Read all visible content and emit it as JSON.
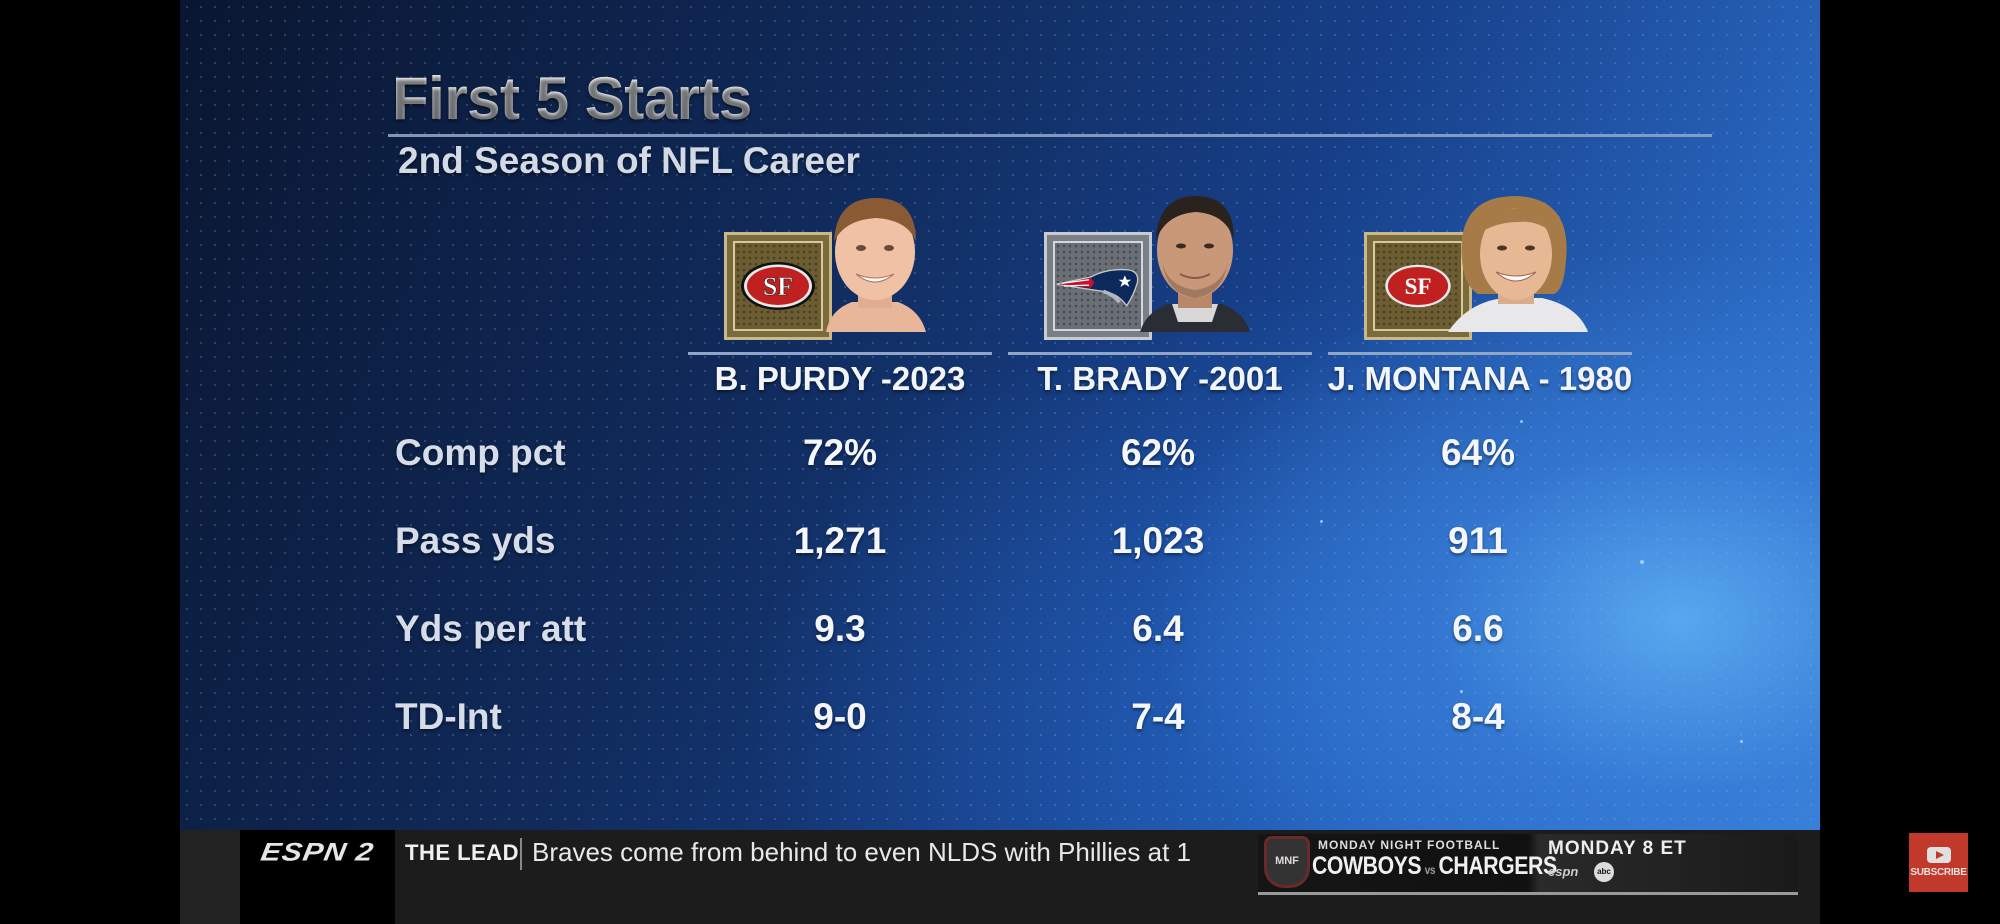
{
  "graphic": {
    "title": "First 5 Starts",
    "subtitle": "2nd Season of NFL Career"
  },
  "players": [
    {
      "name": "B. PURDY -2023",
      "team_logo": "49ers-logo",
      "team_color": "#c0201f",
      "frame": "gold"
    },
    {
      "name": "T. BRADY -2001",
      "team_logo": "patriots-logo",
      "team_color": "#0b2a5b",
      "frame": "silver"
    },
    {
      "name": "J. MONTANA - 1980",
      "team_logo": "49ers-logo",
      "team_color": "#c0201f",
      "frame": "gold"
    }
  ],
  "stats": {
    "rows": [
      {
        "label": "Comp pct",
        "values": [
          "72%",
          "62%",
          "64%"
        ]
      },
      {
        "label": "Pass yds",
        "values": [
          "1,271",
          "1,023",
          "911"
        ]
      },
      {
        "label": "Yds per att",
        "values": [
          "9.3",
          "6.4",
          "6.6"
        ]
      },
      {
        "label": "TD-Int",
        "values": [
          "9-0",
          "7-4",
          "8-4"
        ]
      }
    ]
  },
  "ticker": {
    "network": "ESPN 2",
    "segment": "THE LEAD",
    "headline": "Braves come from behind to even NLDS with Phillies at 1",
    "promo": {
      "badge": "MNF",
      "series": "MONDAY NIGHT FOOTBALL",
      "team_a": "COWBOYS",
      "vs": "vs",
      "team_b": "CHARGERS",
      "when": "MONDAY 8 ET",
      "network": "espn",
      "network2": "abc"
    }
  },
  "overlay": {
    "subscribe_label": "SUBSCRIBE",
    "subscribe_color": "#c0392b"
  }
}
